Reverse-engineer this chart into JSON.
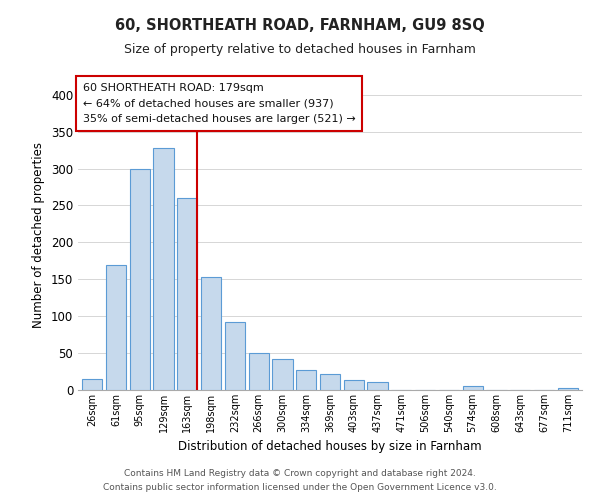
{
  "title": "60, SHORTHEATH ROAD, FARNHAM, GU9 8SQ",
  "subtitle": "Size of property relative to detached houses in Farnham",
  "xlabel": "Distribution of detached houses by size in Farnham",
  "ylabel": "Number of detached properties",
  "bar_labels": [
    "26sqm",
    "61sqm",
    "95sqm",
    "129sqm",
    "163sqm",
    "198sqm",
    "232sqm",
    "266sqm",
    "300sqm",
    "334sqm",
    "369sqm",
    "403sqm",
    "437sqm",
    "471sqm",
    "506sqm",
    "540sqm",
    "574sqm",
    "608sqm",
    "643sqm",
    "677sqm",
    "711sqm"
  ],
  "bar_heights": [
    15,
    170,
    300,
    328,
    260,
    153,
    92,
    50,
    42,
    27,
    22,
    13,
    11,
    0,
    0,
    0,
    5,
    0,
    0,
    0,
    3
  ],
  "bar_color": "#c6d9ec",
  "bar_edge_color": "#5b9bd5",
  "vline_x_index": 4,
  "vline_color": "#cc0000",
  "ylim": [
    0,
    420
  ],
  "yticks": [
    0,
    50,
    100,
    150,
    200,
    250,
    300,
    350,
    400
  ],
  "annotation_title": "60 SHORTHEATH ROAD: 179sqm",
  "annotation_line1": "← 64% of detached houses are smaller (937)",
  "annotation_line2": "35% of semi-detached houses are larger (521) →",
  "annotation_box_color": "#ffffff",
  "annotation_box_edge": "#cc0000",
  "footer1": "Contains HM Land Registry data © Crown copyright and database right 2024.",
  "footer2": "Contains public sector information licensed under the Open Government Licence v3.0."
}
